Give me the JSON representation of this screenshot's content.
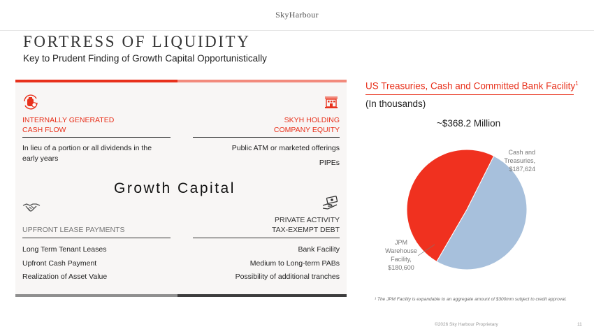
{
  "header": {
    "logo": "SkyHarbour"
  },
  "title": "FORTRESS OF LIQUIDITY",
  "subtitle": "Key to Prudent Finding of Growth Capital Opportunistically",
  "panel": {
    "center_label": "Growth Capital",
    "q1": {
      "heading_1": "INTERNALLY GENERATED",
      "heading_2": "CASH FLOW",
      "line_1": "In lieu of a portion or all dividends in the",
      "line_2": "early years"
    },
    "q2": {
      "heading_1": "SKYH HOLDING",
      "heading_2": "COMPANY EQUITY",
      "line_1": "Public ATM or marketed offerings",
      "line_2": "PIPEs"
    },
    "q3": {
      "heading": "UPFRONT LEASE PAYMENTS",
      "items": [
        "Long Term Tenant Leases",
        "Upfront Cash Payment",
        "Realization of Asset Value"
      ]
    },
    "q4": {
      "heading_1": "PRIVATE ACTIVITY",
      "heading_2": "TAX-EXEMPT DEBT",
      "items": [
        "Bank Facility",
        "Medium to Long-term PABs",
        "Possibility of additional tranches"
      ]
    },
    "icons": [
      "money-bag-icon",
      "building-icon",
      "handshake-icon",
      "hand-cash-icon"
    ]
  },
  "chart_title": "US Treasuries, Cash and Committed Bank Facility",
  "chart_title_sup": "1",
  "chart_unit": "(In thousands)",
  "chart_total": "~$368.2 Million",
  "chart_data": {
    "type": "pie",
    "title": "US Treasuries, Cash and Committed Bank Facility",
    "slices": [
      {
        "label_lines": [
          "Cash and",
          "Treasuries,",
          "$187,624"
        ],
        "value": 187624,
        "color": "#a7c0dc"
      },
      {
        "label_lines": [
          "JPM",
          "Warehouse",
          "Facility,",
          "$180,600"
        ],
        "value": 180600,
        "color": "#f0311f"
      }
    ]
  },
  "footnote": "¹ The JPM Facility is expandable to an aggregate amount of $300mm subject to credit approval.",
  "footer": "©2026 Sky Harbour Proprietary",
  "page_number": "11",
  "colors": {
    "accent": "#e8311c",
    "accent_light": "#f28a7c",
    "panel_bg": "#f8f6f5",
    "dark_bar": "#3d3d3d",
    "gray_bar": "#8f8f8f"
  }
}
